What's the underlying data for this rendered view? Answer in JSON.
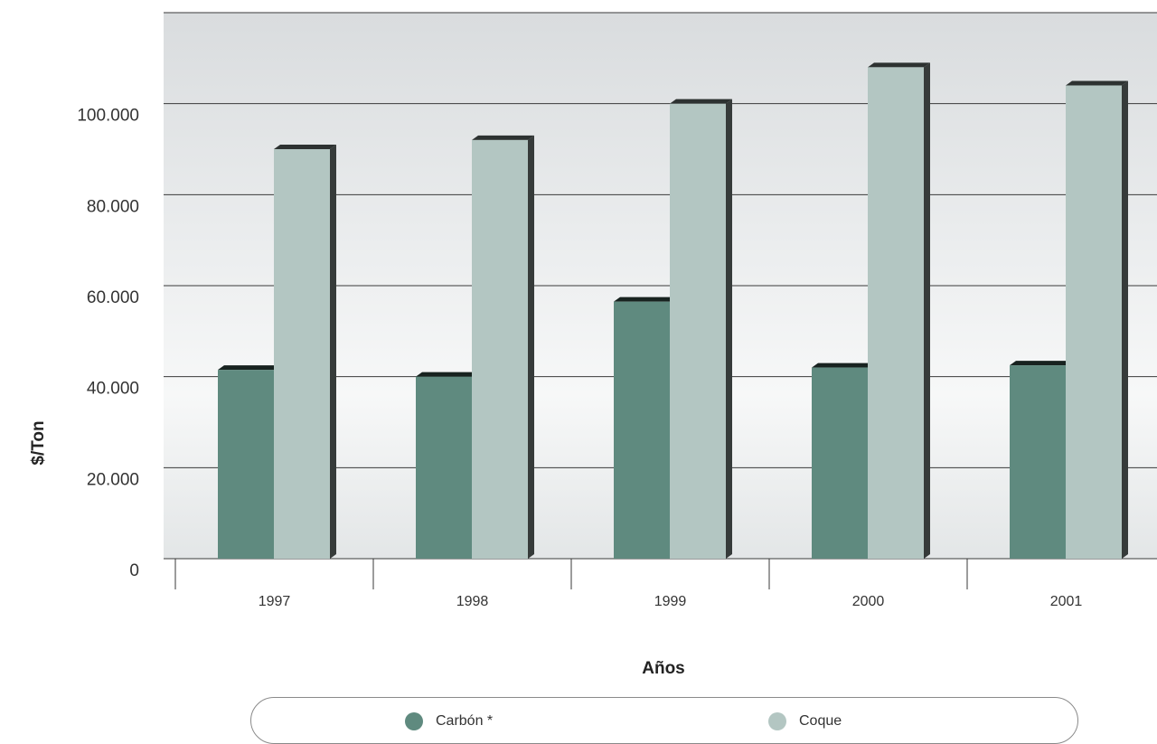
{
  "chart_data": {
    "type": "bar",
    "title": "",
    "xlabel": "Años",
    "ylabel": "$/Ton",
    "categories": [
      "1997",
      "1998",
      "1999",
      "2000",
      "2001"
    ],
    "series": [
      {
        "name": "Carbón *",
        "values": [
          41500,
          40000,
          56500,
          42000,
          42500
        ],
        "color": "#5f8a7f"
      },
      {
        "name": "Coque",
        "values": [
          90000,
          92000,
          100000,
          108000,
          104000
        ],
        "color": "#b3c6c2"
      }
    ],
    "ylim": [
      0,
      120000
    ],
    "yticks": [
      0,
      20000,
      40000,
      60000,
      80000,
      100000
    ],
    "ytick_labels": [
      "0",
      "20.000",
      "40.000",
      "60.000",
      "80.000",
      "100.000"
    ],
    "grid": true,
    "legend_position": "bottom"
  }
}
